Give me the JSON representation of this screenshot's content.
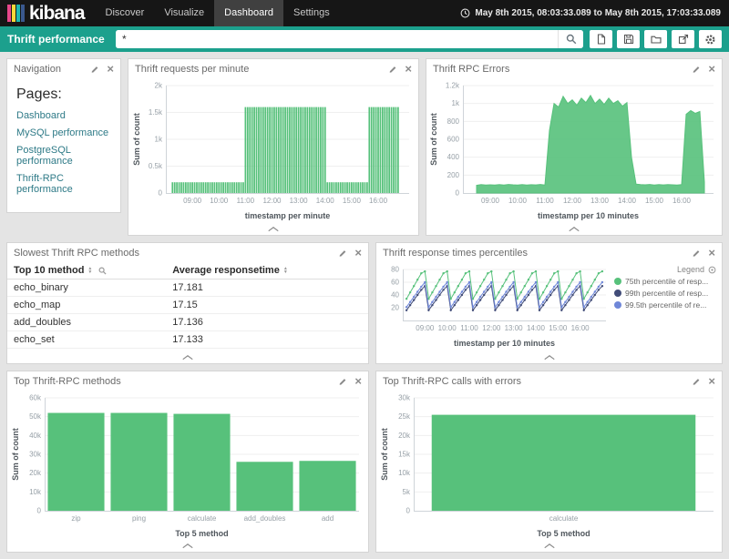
{
  "header": {
    "logo_text": "kibana",
    "nav": [
      {
        "label": "Discover",
        "active": false
      },
      {
        "label": "Visualize",
        "active": false
      },
      {
        "label": "Dashboard",
        "active": true
      },
      {
        "label": "Settings",
        "active": false
      }
    ],
    "time_range": "May 8th 2015, 08:03:33.089 to May 8th 2015, 17:03:33.089"
  },
  "querybar": {
    "title": "Thrift performance",
    "query": "*",
    "icons": [
      "new-document-icon",
      "save-icon",
      "open-folder-icon",
      "share-icon",
      "gear-icon"
    ]
  },
  "colors": {
    "accent_teal": "#1ca08d",
    "series_green": "#57c17b",
    "series_navy": "#414c78",
    "series_blue": "#6f87d8",
    "topbar_black": "#161616"
  },
  "panels": {
    "navigation": {
      "title": "Navigation",
      "heading": "Pages:",
      "links": [
        "Dashboard",
        "MySQL performance",
        "PostgreSQL performance",
        "Thrift-RPC performance"
      ]
    },
    "requests": {
      "title": "Thrift requests per minute"
    },
    "errors": {
      "title": "Thrift RPC Errors"
    },
    "slowest": {
      "title": "Slowest Thrift RPC methods",
      "columns": [
        "Top 10 method",
        "Average responsetime"
      ],
      "rows": [
        [
          "echo_binary",
          "17.181"
        ],
        [
          "echo_map",
          "17.15"
        ],
        [
          "add_doubles",
          "17.136"
        ],
        [
          "echo_set",
          "17.133"
        ]
      ]
    },
    "percentiles": {
      "title": "Thrift response times percentiles",
      "legend_title": "Legend"
    },
    "top_methods": {
      "title": "Top Thrift-RPC methods"
    },
    "top_errors": {
      "title": "Top Thrift-RPC calls with errors"
    }
  },
  "chart_data": [
    {
      "id": "requests",
      "type": "bar",
      "title": "Thrift requests per minute",
      "xlabel": "timestamp per minute",
      "ylabel": "Sum of count",
      "color": "#57c17b",
      "ylim": [
        0,
        2000
      ],
      "yticks": [
        {
          "v": 0,
          "label": "0"
        },
        {
          "v": 500,
          "label": "0.5k"
        },
        {
          "v": 1000,
          "label": "1k"
        },
        {
          "v": 1500,
          "label": "1.5k"
        },
        {
          "v": 2000,
          "label": "2k"
        }
      ],
      "time_axis": {
        "t0": 15,
        "step": 5,
        "domain": 550
      },
      "xticks": [
        {
          "min": 60,
          "label": "09:00"
        },
        {
          "min": 120,
          "label": "10:00"
        },
        {
          "min": 180,
          "label": "11:00"
        },
        {
          "min": 240,
          "label": "12:00"
        },
        {
          "min": 300,
          "label": "13:00"
        },
        {
          "min": 360,
          "label": "14:00"
        },
        {
          "min": 420,
          "label": "15:00"
        },
        {
          "min": 480,
          "label": "16:00"
        }
      ],
      "values": [
        200,
        200,
        200,
        200,
        200,
        200,
        200,
        200,
        200,
        200,
        200,
        200,
        200,
        200,
        200,
        200,
        200,
        200,
        200,
        200,
        200,
        200,
        200,
        200,
        200,
        200,
        200,
        200,
        200,
        200,
        200,
        200,
        200,
        1600,
        1600,
        1600,
        1600,
        1600,
        1600,
        1600,
        1600,
        1600,
        1600,
        1600,
        1600,
        1600,
        1600,
        1600,
        1600,
        1600,
        1600,
        1600,
        1600,
        1600,
        1600,
        1600,
        1600,
        1600,
        1600,
        1600,
        1600,
        1600,
        1600,
        1600,
        1600,
        1600,
        1600,
        1600,
        1600,
        1600,
        200,
        200,
        200,
        200,
        200,
        200,
        200,
        200,
        200,
        200,
        200,
        200,
        200,
        200,
        200,
        200,
        200,
        200,
        200,
        1600,
        1600,
        1600,
        1600,
        1600,
        1600,
        1600,
        1600,
        1600,
        1600,
        1600,
        1600,
        1600,
        1600
      ]
    },
    {
      "id": "errors",
      "type": "area",
      "title": "Thrift RPC Errors",
      "xlabel": "timestamp per 10 minutes",
      "ylabel": "Sum of count",
      "color": "#57c17b",
      "ylim": [
        0,
        1200
      ],
      "yticks": [
        {
          "v": 0,
          "label": "0"
        },
        {
          "v": 200,
          "label": "200"
        },
        {
          "v": 400,
          "label": "400"
        },
        {
          "v": 600,
          "label": "600"
        },
        {
          "v": 800,
          "label": "800"
        },
        {
          "v": 1000,
          "label": "1k"
        },
        {
          "v": 1200,
          "label": "1.2k"
        }
      ],
      "time_axis": {
        "t0": 30,
        "step": 10,
        "domain": 550
      },
      "xticks": [
        {
          "min": 60,
          "label": "09:00"
        },
        {
          "min": 120,
          "label": "10:00"
        },
        {
          "min": 180,
          "label": "11:00"
        },
        {
          "min": 240,
          "label": "12:00"
        },
        {
          "min": 300,
          "label": "13:00"
        },
        {
          "min": 360,
          "label": "14:00"
        },
        {
          "min": 420,
          "label": "15:00"
        },
        {
          "min": 480,
          "label": "16:00"
        }
      ],
      "values": [
        85,
        95,
        90,
        92,
        88,
        94,
        90,
        96,
        92,
        90,
        95,
        89,
        93,
        91,
        96,
        90,
        700,
        1000,
        960,
        1080,
        1000,
        1040,
        980,
        1060,
        1010,
        1090,
        1000,
        1050,
        990,
        1060,
        1000,
        1030,
        970,
        1010,
        400,
        100,
        95,
        92,
        96,
        90,
        94,
        91,
        95,
        92,
        90,
        94,
        880,
        920,
        890,
        910,
        120
      ]
    },
    {
      "id": "percentiles",
      "type": "line",
      "title": "Thrift response times percentiles",
      "xlabel": "timestamp per 10 minutes",
      "ylabel": "",
      "ml": 26,
      "ylim": [
        0,
        80
      ],
      "yticks": [
        {
          "v": 20,
          "label": "20"
        },
        {
          "v": 40,
          "label": "40"
        },
        {
          "v": 60,
          "label": "60"
        },
        {
          "v": 80,
          "label": "80"
        }
      ],
      "time_axis": {
        "t0": 10,
        "step": 10,
        "domain": 550
      },
      "xticks": [
        {
          "min": 60,
          "label": "09:00"
        },
        {
          "min": 120,
          "label": "10:00"
        },
        {
          "min": 180,
          "label": "11:00"
        },
        {
          "min": 240,
          "label": "12:00"
        },
        {
          "min": 300,
          "label": "13:00"
        },
        {
          "min": 360,
          "label": "14:00"
        },
        {
          "min": 420,
          "label": "15:00"
        },
        {
          "min": 480,
          "label": "16:00"
        }
      ],
      "series": [
        {
          "name": "75th percentile of resp...",
          "color": "#57c17b",
          "values": [
            34,
            44,
            54,
            64,
            74,
            77,
            34,
            44,
            54,
            64,
            74,
            77,
            34,
            44,
            54,
            64,
            74,
            77,
            34,
            44,
            54,
            64,
            74,
            77,
            34,
            44,
            54,
            64,
            74,
            77,
            34,
            44,
            54,
            64,
            74,
            77,
            34,
            44,
            54,
            64,
            74,
            77,
            34,
            44,
            54,
            64,
            74,
            77,
            34,
            44,
            54,
            64,
            74,
            77
          ]
        },
        {
          "name": "99th percentile of resp...",
          "color": "#414c78",
          "values": [
            16,
            24,
            32,
            40,
            48,
            54,
            16,
            24,
            32,
            40,
            48,
            54,
            16,
            24,
            32,
            40,
            48,
            54,
            16,
            24,
            32,
            40,
            48,
            54,
            16,
            24,
            32,
            40,
            48,
            54,
            16,
            24,
            32,
            40,
            48,
            54,
            16,
            24,
            32,
            40,
            48,
            54,
            16,
            24,
            32,
            40,
            48,
            54,
            16,
            24,
            32,
            40,
            48,
            54
          ]
        },
        {
          "name": "99.5th percentile of re...",
          "color": "#6f87d8",
          "values": [
            21,
            29,
            37,
            45,
            53,
            60,
            21,
            29,
            37,
            45,
            53,
            60,
            21,
            29,
            37,
            45,
            53,
            60,
            21,
            29,
            37,
            45,
            53,
            60,
            21,
            29,
            37,
            45,
            53,
            60,
            21,
            29,
            37,
            45,
            53,
            60,
            21,
            29,
            37,
            45,
            53,
            60,
            21,
            29,
            37,
            45,
            53,
            60,
            21,
            29,
            37,
            45,
            53,
            60
          ]
        }
      ]
    },
    {
      "id": "top_methods",
      "type": "bar",
      "title": "Top Thrift-RPC methods",
      "xlabel": "Top 5 method",
      "ylabel": "Sum of count",
      "color": "#57c17b",
      "ylim": [
        0,
        60000
      ],
      "yticks": [
        {
          "v": 0,
          "label": "0"
        },
        {
          "v": 10000,
          "label": "10k"
        },
        {
          "v": 20000,
          "label": "20k"
        },
        {
          "v": 30000,
          "label": "30k"
        },
        {
          "v": 40000,
          "label": "40k"
        },
        {
          "v": 50000,
          "label": "50k"
        },
        {
          "v": 60000,
          "label": "60k"
        }
      ],
      "categories": [
        "zip",
        "ping",
        "calculate",
        "add_doubles",
        "add"
      ],
      "values": [
        52000,
        52000,
        51500,
        26000,
        26500
      ]
    },
    {
      "id": "top_errors",
      "type": "bar",
      "title": "Top Thrift-RPC calls with errors",
      "xlabel": "Top 5 method",
      "ylabel": "Sum of count",
      "color": "#57c17b",
      "ylim": [
        0,
        30000
      ],
      "yticks": [
        {
          "v": 0,
          "label": "0"
        },
        {
          "v": 5000,
          "label": "5k"
        },
        {
          "v": 10000,
          "label": "10k"
        },
        {
          "v": 15000,
          "label": "15k"
        },
        {
          "v": 20000,
          "label": "20k"
        },
        {
          "v": 25000,
          "label": "25k"
        },
        {
          "v": 30000,
          "label": "30k"
        }
      ],
      "categories": [
        "calculate"
      ],
      "values": [
        25500
      ]
    }
  ]
}
